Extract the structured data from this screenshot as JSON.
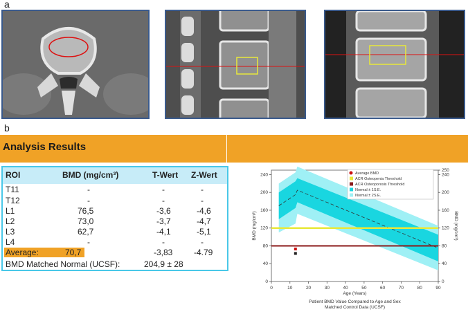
{
  "labels": {
    "a": "a",
    "b": "b"
  },
  "banner": {
    "title": "Analysis Results"
  },
  "table": {
    "headers": {
      "roi": "ROI",
      "bmd": "BMD (mg/cm³)",
      "t": "T-Wert",
      "z": "Z-Wert"
    },
    "rows": [
      {
        "roi": "T11",
        "bmd": "-",
        "t": "-",
        "z": "-"
      },
      {
        "roi": "T12",
        "bmd": "-",
        "t": "-",
        "z": "-"
      },
      {
        "roi": "L1",
        "bmd": "76,5",
        "t": "-3,6",
        "z": "-4,6"
      },
      {
        "roi": "L2",
        "bmd": "73,0",
        "t": "-3,7",
        "z": "-4,7"
      },
      {
        "roi": "L3",
        "bmd": "62,7",
        "t": "-4,1",
        "z": "-5,1"
      },
      {
        "roi": "L4",
        "bmd": "-",
        "t": "-",
        "z": "-"
      }
    ],
    "average": {
      "roi": "Average:",
      "bmd": "70,7",
      "t": "-3,83",
      "z": "-4.79"
    },
    "matched": {
      "label": "BMD Matched Normal (UCSF):",
      "value": "204,9 ± 28"
    }
  },
  "chart_data": {
    "type": "line",
    "xlabel": "Age (Years)",
    "ylabel": "BMD (mg/cm³)",
    "ylabel_right": "BMD (mg/cm³)",
    "caption_line1": "Patient BMD Value Compared to Age and Sex",
    "caption_line2": "Matched Control Data (UCSF)",
    "xlim": [
      0,
      90
    ],
    "ylim": [
      0,
      250
    ],
    "xticks": [
      "0",
      "10",
      "20",
      "30",
      "40",
      "50",
      "60",
      "70",
      "80",
      "90"
    ],
    "yticks": [
      "0",
      "40",
      "80",
      "120",
      "160",
      "200",
      "240"
    ],
    "yticks_right": [
      "0",
      "40",
      "80",
      "120",
      "160",
      "200",
      "240",
      "250"
    ],
    "legend": [
      {
        "label": "Average BMD",
        "color": "#cc1111"
      },
      {
        "label": "ACR Osteopenia Threshold",
        "color": "#e8e83a"
      },
      {
        "label": "ACR Osteoporosis Threshold",
        "color": "#8b1a1a"
      },
      {
        "label": "Normal ± 1S.E.",
        "color": "#19d6e0"
      },
      {
        "label": "Normal ± 2S.E.",
        "color": "#9ff0f5"
      }
    ],
    "thresholds": {
      "osteopenia": 120,
      "osteoporosis": 80
    },
    "normal_mean": {
      "x": [
        4,
        13,
        14,
        90
      ],
      "y": [
        170,
        195,
        205,
        75
      ]
    },
    "normal_1se": {
      "x": [
        4,
        13,
        14,
        90
      ],
      "upper": [
        200,
        225,
        232,
        105
      ],
      "lower": [
        140,
        165,
        178,
        45
      ]
    },
    "normal_2se": {
      "x": [
        4,
        13,
        14,
        90
      ],
      "upper": [
        220,
        245,
        258,
        125
      ],
      "lower": [
        110,
        130,
        152,
        25
      ]
    },
    "patient_points": [
      {
        "x": 13,
        "y": 73
      },
      {
        "x": 13,
        "y": 63
      }
    ]
  }
}
